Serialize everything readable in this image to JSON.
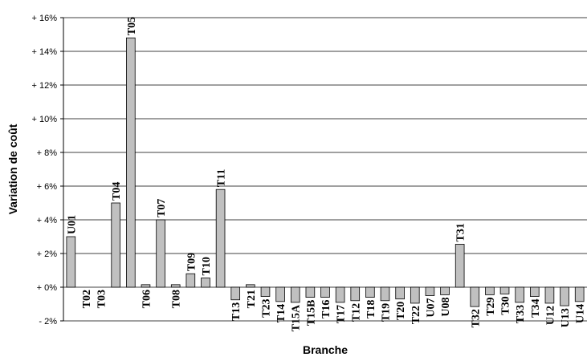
{
  "chart_data": {
    "type": "bar",
    "xlabel": "Branche",
    "ylabel": "Variation de coût",
    "ylim": [
      -2,
      16
    ],
    "yticks": [
      -2,
      0,
      2,
      4,
      6,
      8,
      10,
      12,
      14,
      16
    ],
    "ytick_labels": [
      "- 2%",
      "+ 0%",
      "+ 2%",
      "+ 4%",
      "+ 6%",
      "+ 8%",
      "+ 10%",
      "+ 12%",
      "+ 14%",
      "+ 16%"
    ],
    "grid": true,
    "bar_color": "#c0c0c0",
    "categories": [
      "U01",
      "T02",
      "T03",
      "T04",
      "T05",
      "T06",
      "T07",
      "T08",
      "T09",
      "T10",
      "T11",
      "T13",
      "T21",
      "T23",
      "T14",
      "T15A",
      "T15B",
      "T16",
      "T17",
      "T12",
      "T18",
      "T19",
      "T20",
      "T22",
      "U07",
      "U08",
      "T31",
      "T32",
      "T29",
      "T30",
      "T33",
      "T34",
      "U12",
      "U13",
      "U14"
    ],
    "values": [
      3.0,
      0.0,
      0.0,
      5.0,
      14.8,
      0.15,
      4.0,
      0.15,
      0.8,
      0.55,
      5.8,
      -0.75,
      0.15,
      -0.55,
      -0.85,
      -0.9,
      -0.6,
      -0.6,
      -0.9,
      -0.8,
      -0.6,
      -0.8,
      -0.7,
      -0.95,
      -0.5,
      -0.45,
      2.55,
      -1.15,
      -0.45,
      -0.4,
      -0.9,
      -0.55,
      -0.95,
      -1.1,
      -0.85
    ]
  }
}
